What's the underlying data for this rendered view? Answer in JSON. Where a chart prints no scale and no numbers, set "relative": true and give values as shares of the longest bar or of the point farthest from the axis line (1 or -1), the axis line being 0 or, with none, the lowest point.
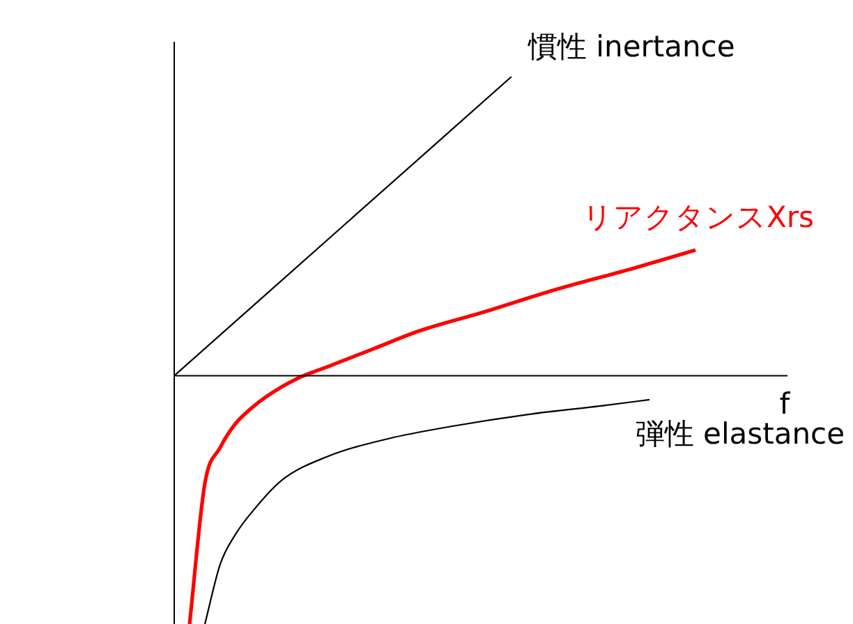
{
  "chart_data": {
    "type": "line",
    "relative": true,
    "xlabel": "f",
    "legend": false,
    "marker": "none",
    "categories": [
      null,
      null,
      null,
      null,
      null,
      null,
      null,
      null,
      null,
      null,
      null,
      null,
      null,
      null,
      null,
      null,
      null,
      null,
      null,
      null,
      null,
      null,
      null,
      null,
      null,
      null,
      null,
      null,
      null,
      null,
      null,
      null,
      null,
      null,
      null,
      null,
      null,
      null,
      null,
      null,
      null
    ],
    "series": [
      {
        "name": "慣性 inertance",
        "color": "#000000",
        "values": [
          0,
          null,
          null,
          null,
          null,
          null,
          null,
          null,
          null,
          null,
          null,
          0.5,
          null,
          null,
          null,
          null,
          null,
          null,
          null,
          null,
          null,
          null,
          1,
          null,
          null,
          null,
          null,
          null,
          null,
          null,
          null,
          null,
          null,
          null,
          null,
          null,
          null,
          null,
          null,
          null,
          null
        ]
      },
      {
        "name": "リアクタンスXrs",
        "color": "#ff0000",
        "values": [
          null,
          -0.83,
          -0.36,
          -0.24,
          -0.16,
          -0.11,
          -0.07,
          null,
          -0.01,
          null,
          0.03,
          null,
          null,
          0.09,
          null,
          null,
          0.15,
          null,
          null,
          null,
          0.21,
          null,
          null,
          null,
          null,
          0.29,
          null,
          null,
          null,
          null,
          0.36,
          null,
          null,
          null,
          0.42,
          null,
          null,
          null,
          null,
          null,
          null
        ]
      },
      {
        "name": "弾性 elastance",
        "color": "#000000",
        "values": [
          null,
          null,
          -0.83,
          -0.63,
          -0.53,
          -0.46,
          null,
          -0.35,
          null,
          null,
          -0.27,
          null,
          null,
          null,
          -0.21,
          null,
          null,
          null,
          -0.17,
          null,
          null,
          null,
          null,
          -0.13,
          null,
          null,
          null,
          null,
          -0.1,
          null,
          null,
          -0.08,
          null,
          null,
          null,
          null,
          null,
          null,
          null,
          null,
          null
        ]
      }
    ]
  }
}
